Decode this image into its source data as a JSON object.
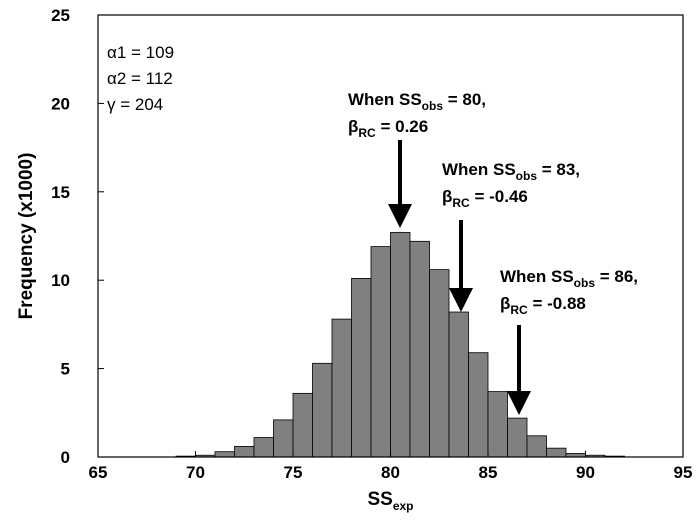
{
  "chart_data": {
    "type": "histogram",
    "xlabel": {
      "main": "SS",
      "sub": "exp"
    },
    "ylabel": "Frequency (x1000)",
    "bins": [
      69,
      70,
      71,
      72,
      73,
      74,
      75,
      76,
      77,
      78,
      79,
      80,
      81,
      82,
      83,
      84,
      85,
      86,
      87,
      88,
      89,
      90,
      91,
      92
    ],
    "values": [
      0.05,
      0.1,
      0.3,
      0.6,
      1.1,
      2.1,
      3.6,
      5.3,
      7.8,
      10.1,
      11.9,
      12.7,
      12.2,
      10.6,
      8.2,
      5.9,
      3.7,
      2.2,
      1.2,
      0.5,
      0.2,
      0.1,
      0.05
    ],
    "color": "#808080",
    "xlim": [
      65,
      95
    ],
    "xticks": [
      65,
      70,
      75,
      80,
      85,
      90,
      95
    ],
    "ylim": [
      0,
      25
    ],
    "yticks": [
      0,
      5,
      10,
      15,
      20,
      25
    ],
    "stats": [
      "α1 = 109",
      "α2 = 112",
      "γ = 204"
    ],
    "annotations": [
      {
        "pre": "When SS",
        "sub": "obs",
        "post": " = 80,",
        "beta": "β",
        "beta_sub": "RC",
        "beta_post": " = 0.26"
      },
      {
        "pre": "When SS",
        "sub": "obs",
        "post": " = 83,",
        "beta": "β",
        "beta_sub": "RC",
        "beta_post": " = -0.46"
      },
      {
        "pre": "When SS",
        "sub": "obs",
        "post": " = 86,",
        "beta": "β",
        "beta_sub": "RC",
        "beta_post": " = -0.88"
      }
    ]
  }
}
